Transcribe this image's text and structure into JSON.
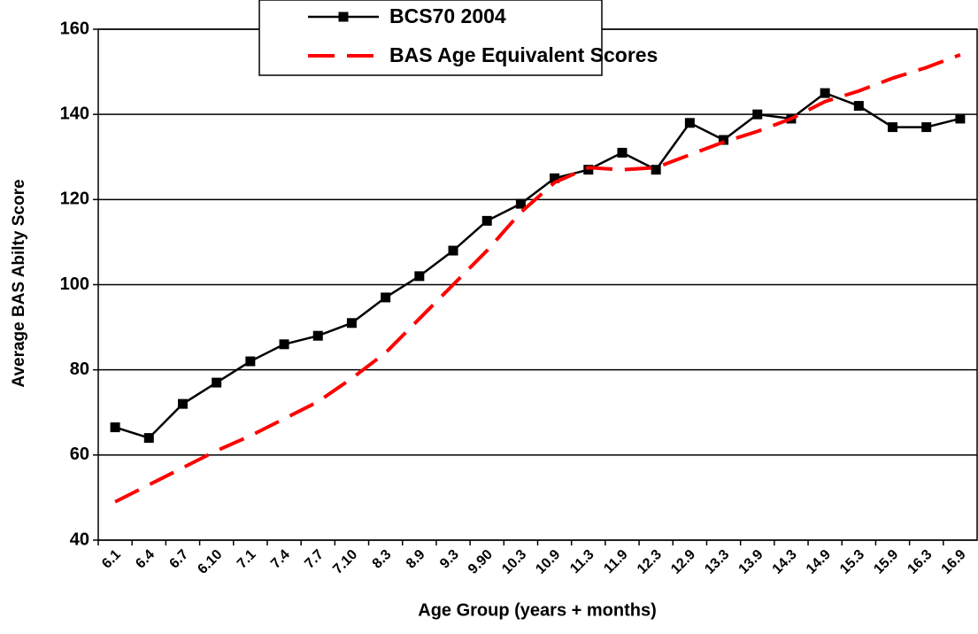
{
  "chart_data": {
    "type": "line",
    "xlabel": "Age Group (years + months)",
    "ylabel": "Average BAS Abilty Score",
    "categories": [
      "6.1",
      "6.4",
      "6.7",
      "6.10",
      "7.1",
      "7.4",
      "7.7",
      "7.10",
      "8.3",
      "8.9",
      "9.3",
      "9.90",
      "10.3",
      "10.9",
      "11.3",
      "11.9",
      "12.3",
      "12.9",
      "13.3",
      "13.9",
      "14.3",
      "14.9",
      "15.3",
      "15.9",
      "16.3",
      "16.9"
    ],
    "series": [
      {
        "name": "BCS70 2004",
        "color": "#000000",
        "style": "solid",
        "marker": "square",
        "values": [
          66.5,
          64,
          72,
          77,
          82,
          86,
          88,
          91,
          97,
          102,
          108,
          115,
          119,
          125,
          127,
          131,
          127,
          138,
          134,
          140,
          139,
          145,
          142,
          137,
          137,
          139
        ]
      },
      {
        "name": "BAS Age Equivalent Scores",
        "color": "#ff0000",
        "style": "dashed",
        "marker": "none",
        "values": [
          49,
          53,
          57,
          61,
          64.5,
          68.5,
          72.5,
          78,
          84,
          92,
          100,
          108,
          117,
          124,
          127.5,
          127,
          127.5,
          130.5,
          133.5,
          136,
          139,
          143,
          145.5,
          148.5,
          151,
          154
        ]
      }
    ],
    "ylim": [
      40,
      160
    ],
    "yticks": [
      40,
      60,
      80,
      100,
      120,
      140,
      160
    ],
    "grid": true,
    "legend": "top"
  }
}
